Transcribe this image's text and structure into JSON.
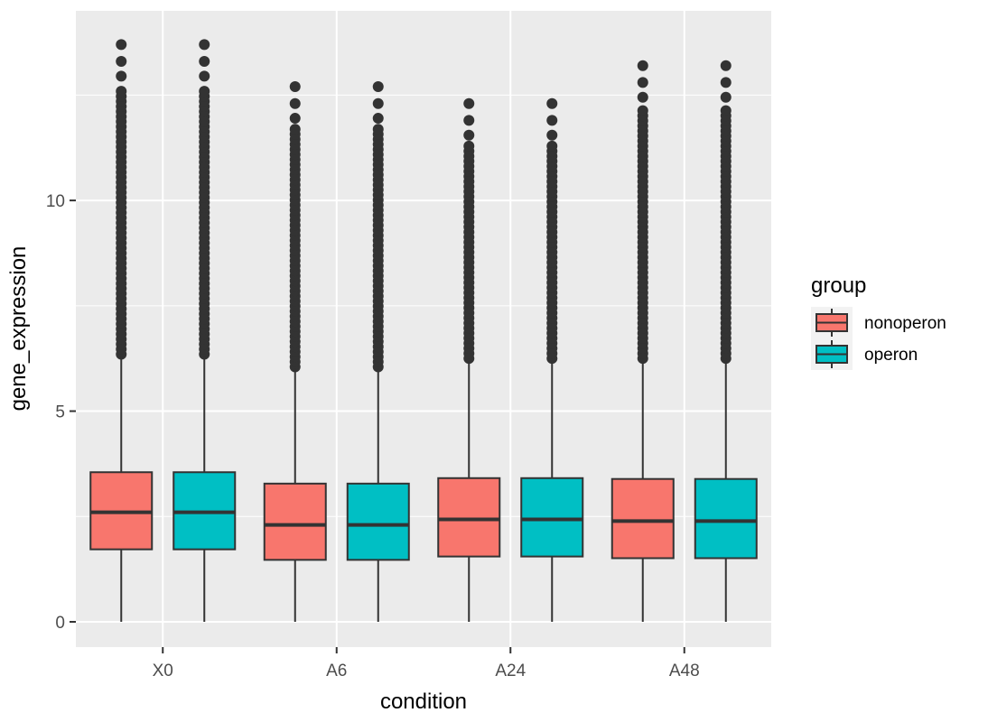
{
  "chart_data": {
    "type": "boxplot",
    "title": "",
    "xlabel": "condition",
    "ylabel": "gene_expression",
    "categories": [
      "X0",
      "A6",
      "A24",
      "A48"
    ],
    "ylim": [
      -0.6,
      14.5
    ],
    "yticks": [
      0,
      5,
      10
    ],
    "grid": true,
    "legend": {
      "title": "group",
      "position": "right"
    },
    "colors": {
      "panel": "#ebebeb",
      "grid": "#ffffff",
      "outlier": "#333333",
      "box_edge": "#333333"
    },
    "series": [
      {
        "name": "nonoperon",
        "color": "#f8766d",
        "boxes": [
          {
            "category": "X0",
            "min": 0,
            "q1": 1.72,
            "median": 2.6,
            "q3": 3.55,
            "whisker_high": 6.3,
            "outlier_max": 13.7
          },
          {
            "category": "A6",
            "min": 0,
            "q1": 1.47,
            "median": 2.3,
            "q3": 3.28,
            "whisker_high": 6.0,
            "outlier_max": 12.7
          },
          {
            "category": "A24",
            "min": 0,
            "q1": 1.55,
            "median": 2.43,
            "q3": 3.41,
            "whisker_high": 6.2,
            "outlier_max": 12.3
          },
          {
            "category": "A48",
            "min": 0,
            "q1": 1.51,
            "median": 2.39,
            "q3": 3.39,
            "whisker_high": 6.2,
            "outlier_max": 13.2
          }
        ]
      },
      {
        "name": "operon",
        "color": "#00bfc4",
        "boxes": [
          {
            "category": "X0",
            "min": 0,
            "q1": 1.72,
            "median": 2.6,
            "q3": 3.55,
            "whisker_high": 6.3,
            "outlier_max": 13.7
          },
          {
            "category": "A6",
            "min": 0,
            "q1": 1.47,
            "median": 2.3,
            "q3": 3.28,
            "whisker_high": 6.0,
            "outlier_max": 12.7
          },
          {
            "category": "A24",
            "min": 0,
            "q1": 1.55,
            "median": 2.43,
            "q3": 3.41,
            "whisker_high": 6.2,
            "outlier_max": 12.3
          },
          {
            "category": "A48",
            "min": 0,
            "q1": 1.51,
            "median": 2.39,
            "q3": 3.39,
            "whisker_high": 6.2,
            "outlier_max": 13.2
          }
        ]
      }
    ]
  }
}
